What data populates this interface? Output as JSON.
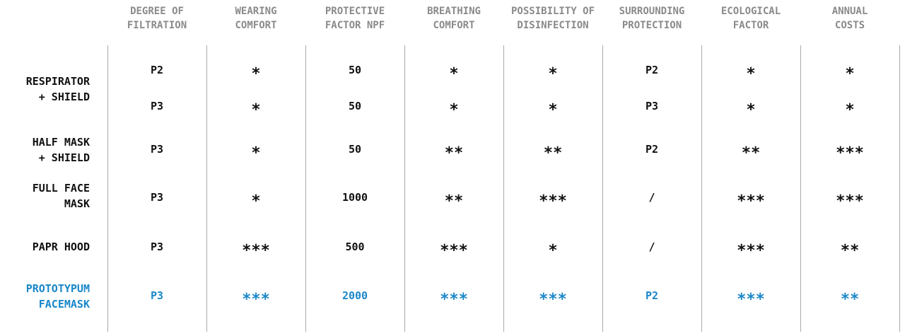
{
  "header": {
    "columns": [
      [
        "DEGREE OF",
        "FILTRATION"
      ],
      [
        "WEARING",
        "COMFORT"
      ],
      [
        "PROTECTIVE",
        "FACTOR NPF"
      ],
      [
        "BREATHING",
        "COMFORT"
      ],
      [
        "POSSIBILITY OF",
        "DISINFECTION"
      ],
      [
        "SURROUNDING",
        "PROTECTION"
      ],
      [
        "ECOLOGICAL",
        "FACTOR"
      ],
      [
        "ANNUAL",
        "COSTS"
      ]
    ]
  },
  "table": {
    "rows": [
      {
        "label": [
          "RESPIRATOR",
          "+ SHIELD"
        ],
        "values": [
          [
            "P2",
            "*",
            "50",
            "*",
            "*",
            "P2",
            "*",
            "*"
          ],
          [
            "P3",
            "*",
            "50",
            "*",
            "*",
            "P3",
            "*",
            "*"
          ]
        ]
      },
      {
        "label": [
          "HALF MASK",
          "+ SHIELD"
        ],
        "values": [
          [
            "P3",
            "*",
            "50",
            "**",
            "**",
            "P2",
            "**",
            "***"
          ]
        ]
      },
      {
        "label": [
          "FULL FACE",
          "MASK"
        ],
        "values": [
          [
            "P3",
            "*",
            "1000",
            "**",
            "***",
            "/",
            "***",
            "***"
          ]
        ]
      },
      {
        "label": [
          "PAPR HOOD"
        ],
        "values": [
          [
            "P3",
            "***",
            "500",
            "***",
            "*",
            "/",
            "***",
            "**"
          ]
        ]
      },
      {
        "label": [
          "PROTOTYPUM",
          "FACEMASK"
        ],
        "color": "#1a87c9",
        "values": [
          [
            "P3",
            "***",
            "2000",
            "***",
            "***",
            "P2",
            "***",
            "**"
          ]
        ]
      }
    ]
  }
}
